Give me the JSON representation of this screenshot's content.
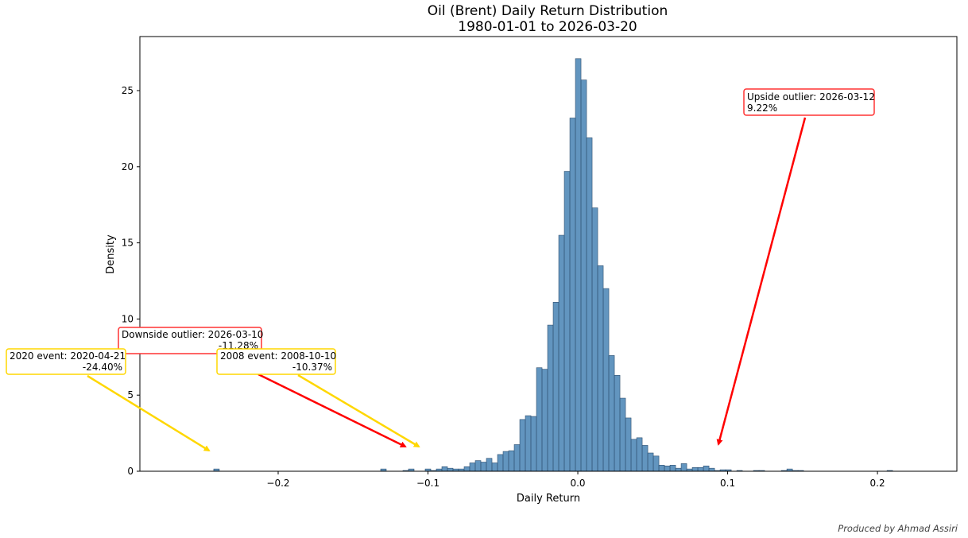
{
  "chart_data": {
    "type": "bar",
    "subtype": "histogram",
    "title": "Oil (Brent) Daily Return Distribution",
    "subtitle": "1980-01-01 to 2026-03-20",
    "xlabel": "Daily Return",
    "ylabel": "Density",
    "xlim": [
      -0.2923,
      0.253
    ],
    "ylim": [
      0,
      28.55
    ],
    "xticks": [
      -0.2,
      -0.1,
      0.0,
      0.1,
      0.2
    ],
    "xtick_labels": [
      "−0.2",
      "−0.1",
      "0.0",
      "0.1",
      "0.2"
    ],
    "yticks": [
      0,
      5,
      10,
      15,
      20,
      25
    ],
    "ytick_labels": [
      "0",
      "5",
      "10",
      "15",
      "20",
      "25"
    ],
    "grid": false,
    "bar_color": "#4682b4",
    "bin_start": -0.243,
    "bin_width": 0.003714,
    "density": [
      0.15,
      0,
      0,
      0,
      0,
      0,
      0,
      0,
      0,
      0,
      0,
      0,
      0,
      0,
      0,
      0,
      0,
      0,
      0,
      0,
      0,
      0,
      0,
      0,
      0,
      0,
      0,
      0,
      0,
      0,
      0.15,
      0,
      0,
      0,
      0.05,
      0.15,
      0,
      0,
      0.15,
      0.05,
      0.15,
      0.3,
      0.2,
      0.15,
      0.15,
      0.3,
      0.55,
      0.7,
      0.6,
      0.85,
      0.55,
      1.1,
      1.3,
      1.35,
      1.75,
      3.4,
      3.65,
      3.6,
      6.8,
      6.7,
      9.6,
      11.1,
      15.5,
      19.7,
      23.2,
      27.1,
      25.7,
      21.9,
      17.3,
      13.5,
      12.0,
      7.6,
      6.3,
      4.8,
      3.5,
      2.1,
      2.2,
      1.7,
      1.2,
      1.0,
      0.4,
      0.35,
      0.4,
      0.2,
      0.5,
      0.15,
      0.25,
      0.25,
      0.35,
      0.2,
      0.05,
      0.1,
      0.1,
      0,
      0.05,
      0,
      0,
      0.05,
      0.05,
      0,
      0,
      0,
      0.05,
      0.15,
      0.05,
      0.05,
      0,
      0,
      0,
      0,
      0,
      0,
      0,
      0,
      0,
      0,
      0,
      0,
      0,
      0,
      0,
      0.05
    ],
    "annotations": [
      {
        "id": "downside",
        "line1": "Downside outlier: 2026-03-10",
        "line2": "-11.28%",
        "target": [
          -0.1128,
          1.5
        ],
        "color": "#ff0000"
      },
      {
        "id": "event2020",
        "line1": "2020 event: 2020-04-21",
        "line2": "-24.40%",
        "target": [
          -0.244,
          1.2
        ],
        "color": "#ffd700"
      },
      {
        "id": "event2008",
        "line1": "2008 event: 2008-10-10",
        "line2": "-10.37%",
        "target": [
          -0.1037,
          1.5
        ],
        "color": "#ffd700"
      },
      {
        "id": "upside",
        "line1": "Upside outlier: 2026-03-12",
        "line2": "9.22%",
        "target": [
          0.0922,
          1.6
        ],
        "color": "#ff0000"
      }
    ]
  },
  "footer": "Produced by Ahmad Assiri"
}
